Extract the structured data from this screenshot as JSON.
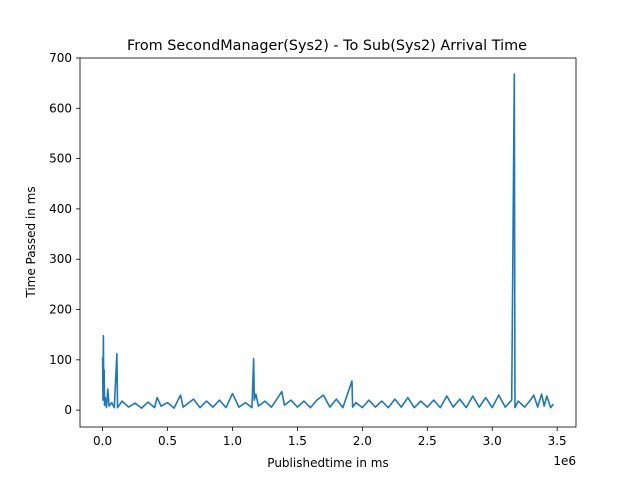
{
  "chart_data": {
    "type": "line",
    "title": "From SecondManager(Sys2) - To Sub(Sys2) Arrival Time",
    "xlabel": "Publishedtime in ms",
    "ylabel": "Time Passed in ms",
    "x_offset_label": "1e6",
    "xlim": [
      -0.174,
      3.645
    ],
    "ylim": [
      -33.5,
      700
    ],
    "xticks": [
      0.0,
      0.5,
      1.0,
      1.5,
      2.0,
      2.5,
      3.0,
      3.5
    ],
    "xtick_labels": [
      "0.0",
      "0.5",
      "1.0",
      "1.5",
      "2.0",
      "2.5",
      "3.0",
      "3.5"
    ],
    "yticks": [
      0,
      100,
      200,
      300,
      400,
      500,
      600,
      700
    ],
    "ytick_labels": [
      "0",
      "100",
      "200",
      "300",
      "400",
      "500",
      "600",
      "700"
    ],
    "line_color": "#1f77b4",
    "grid": false,
    "series": [
      {
        "name": "arrival_time",
        "x_unit_scale": "1e6",
        "points": [
          [
            0.0,
            105
          ],
          [
            0.003,
            20
          ],
          [
            0.006,
            148
          ],
          [
            0.009,
            30
          ],
          [
            0.012,
            80
          ],
          [
            0.015,
            10
          ],
          [
            0.02,
            25
          ],
          [
            0.03,
            5
          ],
          [
            0.04,
            42
          ],
          [
            0.05,
            8
          ],
          [
            0.07,
            15
          ],
          [
            0.09,
            5
          ],
          [
            0.11,
            112
          ],
          [
            0.115,
            5
          ],
          [
            0.15,
            18
          ],
          [
            0.2,
            6
          ],
          [
            0.25,
            14
          ],
          [
            0.3,
            4
          ],
          [
            0.35,
            16
          ],
          [
            0.4,
            5
          ],
          [
            0.42,
            25
          ],
          [
            0.45,
            8
          ],
          [
            0.5,
            15
          ],
          [
            0.55,
            4
          ],
          [
            0.6,
            30
          ],
          [
            0.62,
            6
          ],
          [
            0.7,
            22
          ],
          [
            0.75,
            5
          ],
          [
            0.8,
            18
          ],
          [
            0.85,
            6
          ],
          [
            0.9,
            20
          ],
          [
            0.95,
            5
          ],
          [
            1.0,
            33
          ],
          [
            1.05,
            6
          ],
          [
            1.1,
            15
          ],
          [
            1.15,
            5
          ],
          [
            1.163,
            102
          ],
          [
            1.168,
            20
          ],
          [
            1.18,
            32
          ],
          [
            1.2,
            8
          ],
          [
            1.25,
            18
          ],
          [
            1.3,
            6
          ],
          [
            1.35,
            25
          ],
          [
            1.38,
            37
          ],
          [
            1.4,
            10
          ],
          [
            1.45,
            20
          ],
          [
            1.5,
            6
          ],
          [
            1.55,
            18
          ],
          [
            1.6,
            5
          ],
          [
            1.65,
            20
          ],
          [
            1.7,
            30
          ],
          [
            1.75,
            6
          ],
          [
            1.8,
            22
          ],
          [
            1.85,
            5
          ],
          [
            1.92,
            58
          ],
          [
            1.925,
            6
          ],
          [
            1.95,
            15
          ],
          [
            2.0,
            5
          ],
          [
            2.05,
            20
          ],
          [
            2.1,
            6
          ],
          [
            2.15,
            18
          ],
          [
            2.2,
            5
          ],
          [
            2.25,
            22
          ],
          [
            2.3,
            6
          ],
          [
            2.35,
            25
          ],
          [
            2.4,
            5
          ],
          [
            2.45,
            18
          ],
          [
            2.5,
            6
          ],
          [
            2.55,
            20
          ],
          [
            2.6,
            5
          ],
          [
            2.65,
            28
          ],
          [
            2.7,
            6
          ],
          [
            2.75,
            22
          ],
          [
            2.8,
            5
          ],
          [
            2.85,
            28
          ],
          [
            2.9,
            6
          ],
          [
            2.95,
            25
          ],
          [
            3.0,
            5
          ],
          [
            3.05,
            30
          ],
          [
            3.1,
            6
          ],
          [
            3.15,
            20
          ],
          [
            3.17,
            668
          ],
          [
            3.175,
            5
          ],
          [
            3.2,
            18
          ],
          [
            3.25,
            6
          ],
          [
            3.3,
            22
          ],
          [
            3.32,
            30
          ],
          [
            3.35,
            6
          ],
          [
            3.38,
            32
          ],
          [
            3.4,
            8
          ],
          [
            3.42,
            28
          ],
          [
            3.45,
            5
          ],
          [
            3.47,
            12
          ]
        ]
      }
    ]
  }
}
